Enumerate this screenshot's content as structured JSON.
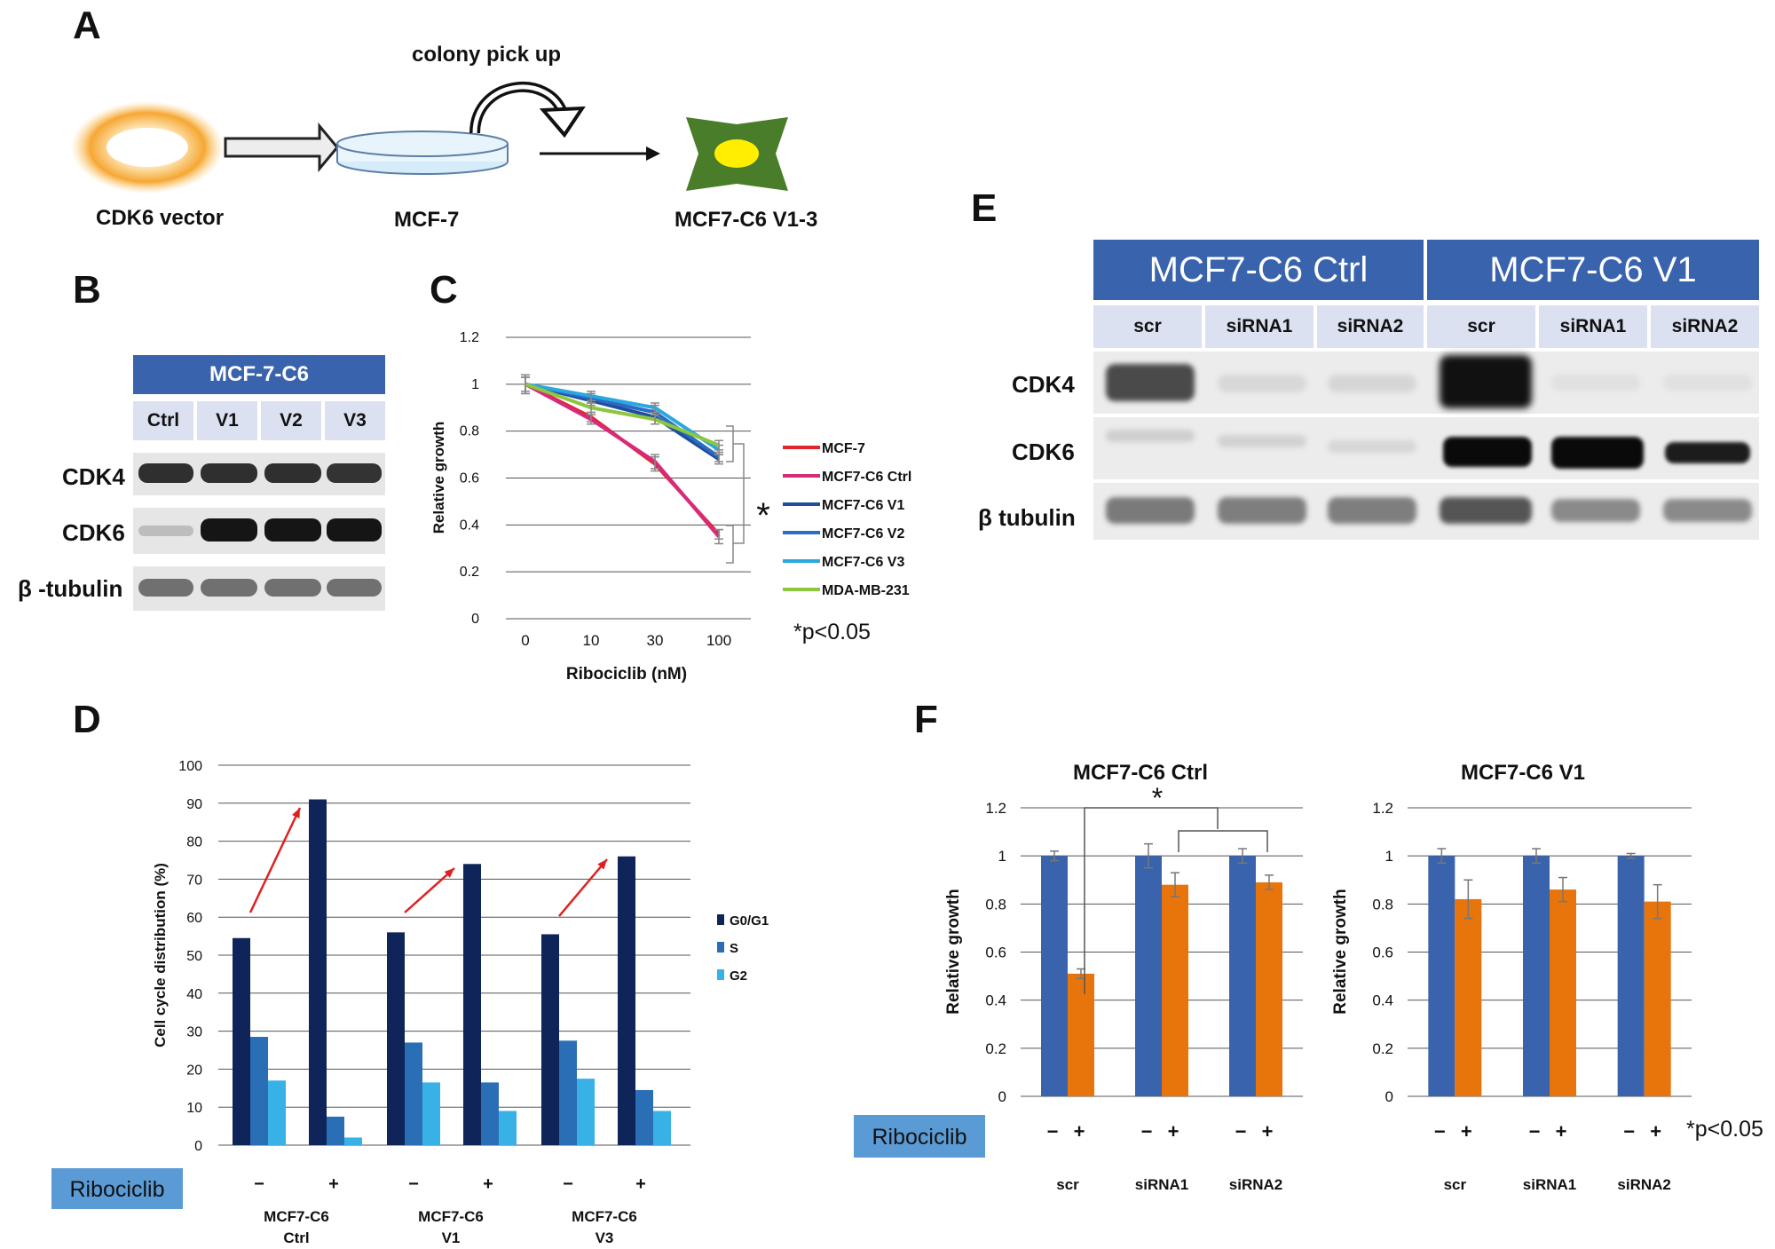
{
  "panels": {
    "A": {
      "label": "A",
      "colony_label": "colony pick up",
      "vector_label": "CDK6 vector",
      "mcf7_label": "MCF-7",
      "result_label": "MCF7-C6 V1-3"
    },
    "B": {
      "label": "B",
      "header": "MCF-7-C6",
      "lanes": [
        "Ctrl",
        "V1",
        "V2",
        "V3"
      ],
      "rows": [
        "CDK4",
        "CDK6",
        "β -tubulin"
      ]
    },
    "C": {
      "label": "C"
    },
    "D": {
      "label": "D"
    },
    "E": {
      "label": "E",
      "groups": [
        "MCF7-C6 Ctrl",
        "MCF7-C6 V1"
      ],
      "lanes": [
        "scr",
        "siRNA1",
        "siRNA2",
        "scr",
        "siRNA1",
        "siRNA2"
      ],
      "rows": [
        "CDK4",
        "CDK6",
        "β tubulin"
      ]
    },
    "F": {
      "label": "F"
    }
  },
  "colors": {
    "header_blue": "#3a63ad",
    "subheader": "#dbe1f1",
    "ribociclib_box": "#5b9bd5",
    "bar_blue": "#3a63ad",
    "bar_orange": "#e8740c",
    "arrow_red": "#e02020",
    "dark_navy": "#0f2459",
    "mid_blue": "#2a6eb5",
    "light_blue": "#38b2e6"
  },
  "chart_data": [
    {
      "id": "C",
      "type": "line",
      "xlabel": "Ribociclib (nM)",
      "ylabel": "Relative growth",
      "categories": [
        "0",
        "10",
        "30",
        "100"
      ],
      "ylim": [
        0,
        1.2
      ],
      "yticks": [
        "0",
        "0.2",
        "0.4",
        "0.6",
        "0.8",
        "1",
        "1.2"
      ],
      "grid": true,
      "legend_position": "right",
      "significance": "*",
      "pvalue_note": "*p<0.05",
      "series": [
        {
          "name": "MCF-7",
          "color": "#e3262a",
          "values": [
            1.0,
            0.86,
            0.66,
            0.36
          ],
          "err": [
            0.04,
            0.02,
            0.03,
            0.02
          ]
        },
        {
          "name": "MCF7-C6 Ctrl",
          "color": "#d62a7b",
          "values": [
            1.0,
            0.85,
            0.67,
            0.35
          ],
          "err": [
            0.04,
            0.02,
            0.03,
            0.03
          ]
        },
        {
          "name": "MCF7-C6 V1",
          "color": "#1f4e9c",
          "values": [
            1.0,
            0.93,
            0.86,
            0.68
          ],
          "err": [
            0.03,
            0.02,
            0.03,
            0.02
          ]
        },
        {
          "name": "MCF7-C6 V2",
          "color": "#2a6bc5",
          "values": [
            1.0,
            0.94,
            0.88,
            0.69
          ],
          "err": [
            0.03,
            0.02,
            0.03,
            0.02
          ]
        },
        {
          "name": "MCF7-C6 V3",
          "color": "#29a8e0",
          "values": [
            1.0,
            0.95,
            0.9,
            0.72
          ],
          "err": [
            0.03,
            0.02,
            0.02,
            0.02
          ]
        },
        {
          "name": "MDA-MB-231",
          "color": "#8dc63f",
          "values": [
            1.0,
            0.9,
            0.85,
            0.74
          ],
          "err": [
            0.03,
            0.02,
            0.02,
            0.02
          ]
        }
      ]
    },
    {
      "id": "D",
      "type": "bar",
      "ylabel": "Cell cycle distribution (%)",
      "ylim": [
        0,
        100
      ],
      "yticks": [
        "0",
        "10",
        "20",
        "30",
        "40",
        "50",
        "60",
        "70",
        "80",
        "90",
        "100"
      ],
      "grid": true,
      "legend_position": "right",
      "treatment_label": "Ribociclib",
      "groups": [
        {
          "name": [
            "MCF7-C6",
            "Ctrl"
          ],
          "treat": [
            "−",
            "+"
          ]
        },
        {
          "name": [
            "MCF7-C6",
            "V1"
          ],
          "treat": [
            "−",
            "+"
          ]
        },
        {
          "name": [
            "MCF7-C6",
            "V3"
          ],
          "treat": [
            "−",
            "+"
          ]
        }
      ],
      "series": [
        {
          "name": "G0/G1",
          "color": "#0f2459",
          "values": [
            54.5,
            91,
            56,
            74,
            55.5,
            76
          ]
        },
        {
          "name": "S",
          "color": "#2a6eb5",
          "values": [
            28.5,
            7.5,
            27,
            16.5,
            27.5,
            14.5
          ]
        },
        {
          "name": "G2",
          "color": "#38b2e6",
          "values": [
            17,
            2,
            16.5,
            9,
            17.5,
            9
          ]
        }
      ]
    },
    {
      "id": "F1",
      "type": "bar",
      "title": "MCF7-C6 Ctrl",
      "ylabel": "Relative growth",
      "ylim": [
        0,
        1.2
      ],
      "yticks": [
        "0",
        "0.2",
        "0.4",
        "0.6",
        "0.8",
        "1",
        "1.2"
      ],
      "grid": true,
      "categories": [
        "scr",
        "siRNA1",
        "siRNA2"
      ],
      "treatment_label": "Ribociclib",
      "treat": [
        "−",
        "+"
      ],
      "significance": "*",
      "series": [
        {
          "name": "−",
          "color": "#3a63ad",
          "values": [
            1.0,
            1.0,
            1.0
          ],
          "err": [
            0.02,
            0.05,
            0.03
          ]
        },
        {
          "name": "+",
          "color": "#e8740c",
          "values": [
            0.51,
            0.88,
            0.89
          ],
          "err": [
            0.02,
            0.05,
            0.03
          ]
        }
      ]
    },
    {
      "id": "F2",
      "type": "bar",
      "title": "MCF7-C6 V1",
      "ylabel": "Relative growth",
      "ylim": [
        0,
        1.2
      ],
      "yticks": [
        "0",
        "0.2",
        "0.4",
        "0.6",
        "0.8",
        "1",
        "1.2"
      ],
      "grid": true,
      "categories": [
        "scr",
        "siRNA1",
        "siRNA2"
      ],
      "treat": [
        "−",
        "+"
      ],
      "pvalue_note": "*p<0.05",
      "series": [
        {
          "name": "−",
          "color": "#3a63ad",
          "values": [
            1.0,
            1.0,
            1.0
          ],
          "err": [
            0.03,
            0.03,
            0.01
          ]
        },
        {
          "name": "+",
          "color": "#e8740c",
          "values": [
            0.82,
            0.86,
            0.81
          ],
          "err": [
            0.08,
            0.05,
            0.07
          ]
        }
      ]
    }
  ]
}
